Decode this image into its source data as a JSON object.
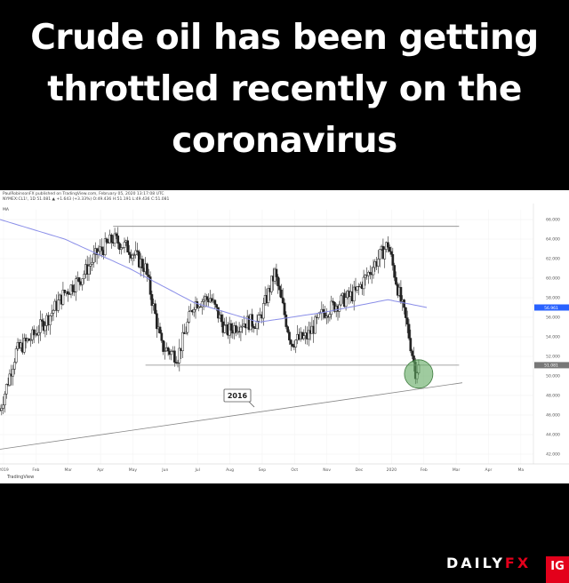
{
  "headline": {
    "line1": "Crude oil has been getting",
    "line2": "throttled recently on the",
    "line3": "coronavirus"
  },
  "chart_header": {
    "line1": "PaulRobinsonFX published on TradingView.com, February 05, 2020 13:17:08 UTC",
    "line2": "NYMEX:CL1!, 1D 51.081 ▲ +1.643 (+3.33%) O:49.436 H:51.191 L:49.436 C:51.081",
    "indicator": "MA"
  },
  "watermark": "TradingView",
  "annotation_label": "2016",
  "colors": {
    "background": "#000000",
    "panel": "#ffffff",
    "candle": "#222222",
    "ma_line": "#8a8ee8",
    "trendline": "#888888",
    "highlight_circle": "#5fa85f",
    "price_tag": "#2962ff",
    "brand_red": "#e3001b"
  },
  "chart_data": {
    "type": "candlestick",
    "title": "",
    "xlabel": "",
    "ylabel": "",
    "x_tick_labels": [
      "2019",
      "Feb",
      "Mar",
      "Apr",
      "May",
      "Jun",
      "Jul",
      "Aug",
      "Sep",
      "Oct",
      "Nov",
      "Dec",
      "2020",
      "Feb",
      "Mar",
      "Apr",
      "Ma"
    ],
    "y_tick_labels": [
      "42.000",
      "44.000",
      "46.000",
      "48.000",
      "50.000",
      "52.000",
      "54.000",
      "56.000",
      "58.000",
      "60.000",
      "62.000",
      "64.000",
      "66.000"
    ],
    "ylim": [
      41,
      67
    ],
    "grid": true,
    "current_price_labels": [
      "56.961",
      "51.081"
    ],
    "monthly_path": [
      {
        "month": 0,
        "close": 46.5
      },
      {
        "month": 0.5,
        "close": 52.5
      },
      {
        "month": 1,
        "close": 54.0
      },
      {
        "month": 1.5,
        "close": 56.0
      },
      {
        "month": 2,
        "close": 58.5
      },
      {
        "month": 2.5,
        "close": 60.0
      },
      {
        "month": 3,
        "close": 62.5
      },
      {
        "month": 3.5,
        "close": 64.0
      },
      {
        "month": 4,
        "close": 63.0
      },
      {
        "month": 4.5,
        "close": 61.0
      },
      {
        "month": 5,
        "close": 53.0
      },
      {
        "month": 5.5,
        "close": 52.0
      },
      {
        "month": 6,
        "close": 57.5
      },
      {
        "month": 6.5,
        "close": 58.0
      },
      {
        "month": 7,
        "close": 54.5
      },
      {
        "month": 7.5,
        "close": 55.5
      },
      {
        "month": 8,
        "close": 55.5
      },
      {
        "month": 8.5,
        "close": 60.5
      },
      {
        "month": 9,
        "close": 53.5
      },
      {
        "month": 9.5,
        "close": 54.0
      },
      {
        "month": 10,
        "close": 56.5
      },
      {
        "month": 10.5,
        "close": 57.5
      },
      {
        "month": 11,
        "close": 58.5
      },
      {
        "month": 11.5,
        "close": 61.0
      },
      {
        "month": 12,
        "close": 63.5
      },
      {
        "month": 12.3,
        "close": 59.0
      },
      {
        "month": 12.6,
        "close": 55.0
      },
      {
        "month": 12.85,
        "close": 50.5
      },
      {
        "month": 13.0,
        "close": 51.1
      }
    ],
    "moving_average": [
      {
        "month": 0,
        "value": 66.0
      },
      {
        "month": 2,
        "value": 64.0
      },
      {
        "month": 4,
        "value": 61.0
      },
      {
        "month": 6,
        "value": 57.5
      },
      {
        "month": 8,
        "value": 55.5
      },
      {
        "month": 10,
        "value": 56.5
      },
      {
        "month": 12,
        "value": 57.8
      },
      {
        "month": 13.2,
        "value": 57.0
      }
    ],
    "lines": [
      {
        "name": "",
        "from": {
          "month": 3.5,
          "value": 65.3
        },
        "to": {
          "month": 14.2,
          "value": 65.3
        }
      },
      {
        "name": "",
        "from": {
          "month": 4.5,
          "value": 51.1
        },
        "to": {
          "month": 14.2,
          "value": 51.1
        }
      },
      {
        "name": "",
        "from": {
          "month": 0,
          "value": 42.5
        },
        "to": {
          "month": 14.3,
          "value": 49.3
        }
      }
    ]
  }
}
